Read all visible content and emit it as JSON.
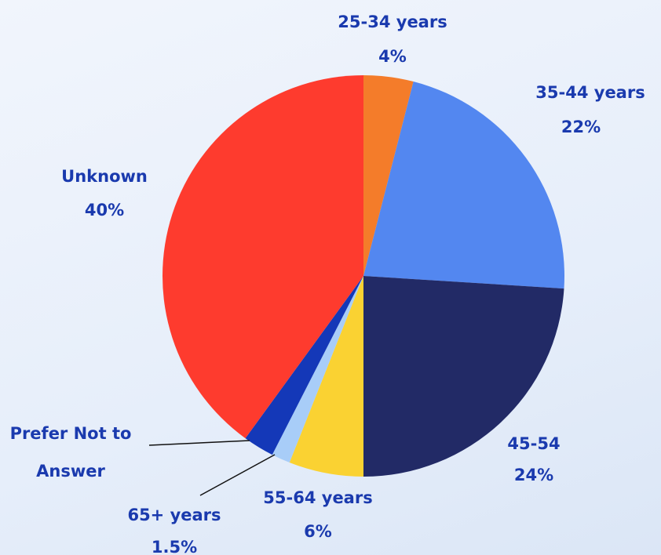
{
  "chart_data": {
    "type": "pie",
    "categories": [
      "25-34 years",
      "35-44 years",
      "45-54",
      "55-64 years",
      "65+ years",
      "Prefer Not to Answer",
      "Unknown"
    ],
    "values": [
      4,
      22,
      24,
      6,
      1.5,
      2.5,
      40
    ],
    "value_labels": [
      "4%",
      "22%",
      "24%",
      "6%",
      "1.5%",
      null,
      "40%"
    ],
    "colors": [
      "#f47c2a",
      "#5387f0",
      "#222a66",
      "#fad232",
      "#a8cdf8",
      "#1438b8",
      "#fe3b2e"
    ]
  }
}
